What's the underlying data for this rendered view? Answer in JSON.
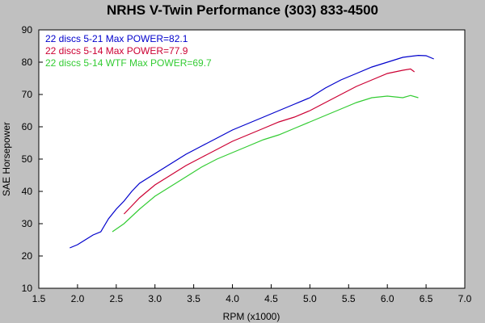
{
  "chart_data": {
    "type": "line",
    "title": "NRHS V-Twin Performance (303) 833-4500",
    "xlabel": "RPM (x1000)",
    "ylabel": "SAE Horsepower",
    "xlim": [
      1.5,
      7.0
    ],
    "ylim": [
      10,
      90
    ],
    "x_ticks": [
      "1.5",
      "2.0",
      "2.5",
      "3.0",
      "3.5",
      "4.0",
      "4.5",
      "5.0",
      "5.5",
      "6.0",
      "6.5",
      "7.0"
    ],
    "y_ticks": [
      "10",
      "20",
      "30",
      "40",
      "50",
      "60",
      "70",
      "80",
      "90"
    ],
    "grid": false,
    "legend_position": "top-left",
    "plot_background": "#ffffff",
    "series": [
      {
        "name": "22 discs 5-21  Max POWER=82.1",
        "color": "#0000cc",
        "points": [
          [
            1.9,
            22.5
          ],
          [
            2.0,
            23.5
          ],
          [
            2.1,
            25.0
          ],
          [
            2.2,
            26.5
          ],
          [
            2.3,
            27.5
          ],
          [
            2.4,
            31.5
          ],
          [
            2.5,
            34.5
          ],
          [
            2.6,
            37.0
          ],
          [
            2.7,
            40.0
          ],
          [
            2.8,
            42.5
          ],
          [
            2.9,
            44.0
          ],
          [
            3.0,
            45.5
          ],
          [
            3.2,
            48.5
          ],
          [
            3.4,
            51.5
          ],
          [
            3.6,
            54.0
          ],
          [
            3.8,
            56.5
          ],
          [
            4.0,
            59.0
          ],
          [
            4.2,
            61.0
          ],
          [
            4.4,
            63.0
          ],
          [
            4.6,
            65.0
          ],
          [
            4.8,
            67.0
          ],
          [
            5.0,
            69.0
          ],
          [
            5.2,
            72.0
          ],
          [
            5.4,
            74.5
          ],
          [
            5.6,
            76.5
          ],
          [
            5.8,
            78.5
          ],
          [
            6.0,
            80.0
          ],
          [
            6.2,
            81.5
          ],
          [
            6.4,
            82.1
          ],
          [
            6.5,
            82.0
          ],
          [
            6.6,
            81.0
          ]
        ]
      },
      {
        "name": "22 discs 5-14  Max POWER=77.9",
        "color": "#cc0033",
        "points": [
          [
            2.6,
            33.0
          ],
          [
            2.7,
            35.5
          ],
          [
            2.8,
            38.0
          ],
          [
            2.9,
            40.0
          ],
          [
            3.0,
            42.0
          ],
          [
            3.2,
            45.0
          ],
          [
            3.4,
            48.0
          ],
          [
            3.6,
            50.5
          ],
          [
            3.8,
            53.0
          ],
          [
            4.0,
            55.5
          ],
          [
            4.2,
            57.5
          ],
          [
            4.4,
            59.5
          ],
          [
            4.6,
            61.5
          ],
          [
            4.8,
            63.0
          ],
          [
            5.0,
            65.0
          ],
          [
            5.2,
            67.5
          ],
          [
            5.4,
            70.0
          ],
          [
            5.6,
            72.5
          ],
          [
            5.8,
            74.5
          ],
          [
            6.0,
            76.5
          ],
          [
            6.2,
            77.5
          ],
          [
            6.3,
            77.9
          ],
          [
            6.35,
            77.0
          ]
        ]
      },
      {
        "name": "22 discs 5-14 WTF  Max POWER=69.7",
        "color": "#33cc33",
        "points": [
          [
            2.45,
            27.5
          ],
          [
            2.6,
            30.0
          ],
          [
            2.8,
            34.5
          ],
          [
            3.0,
            38.5
          ],
          [
            3.2,
            41.5
          ],
          [
            3.4,
            44.5
          ],
          [
            3.6,
            47.5
          ],
          [
            3.8,
            50.0
          ],
          [
            4.0,
            52.0
          ],
          [
            4.2,
            54.0
          ],
          [
            4.4,
            56.0
          ],
          [
            4.6,
            57.5
          ],
          [
            4.8,
            59.5
          ],
          [
            5.0,
            61.5
          ],
          [
            5.2,
            63.5
          ],
          [
            5.4,
            65.5
          ],
          [
            5.6,
            67.5
          ],
          [
            5.8,
            69.0
          ],
          [
            6.0,
            69.5
          ],
          [
            6.2,
            69.0
          ],
          [
            6.3,
            69.7
          ],
          [
            6.4,
            69.0
          ]
        ]
      }
    ]
  }
}
